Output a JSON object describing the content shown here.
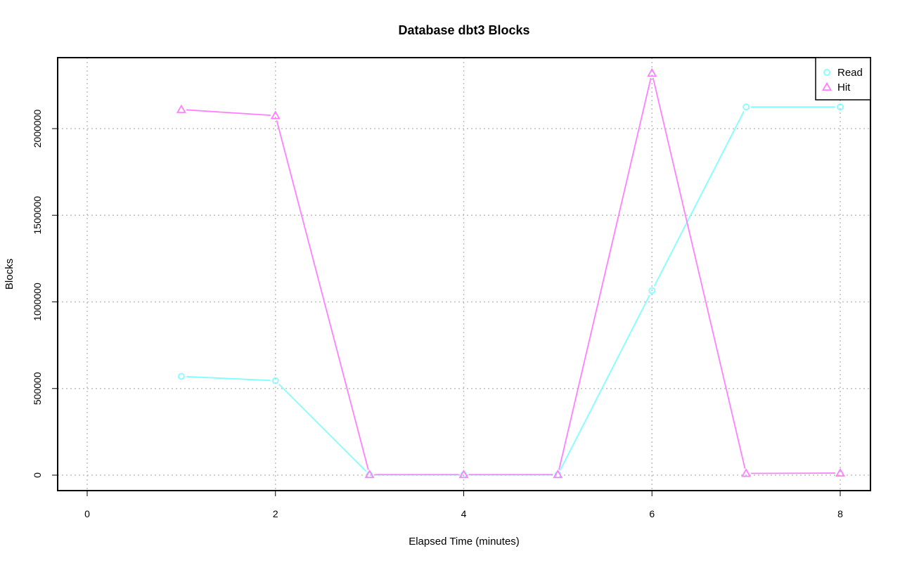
{
  "chart_data": {
    "type": "line",
    "title": "Database dbt3 Blocks",
    "xlabel": "Elapsed Time (minutes)",
    "ylabel": "Blocks",
    "xlim": [
      0,
      8
    ],
    "ylim": [
      0,
      2300000
    ],
    "x_ticks": [
      0,
      2,
      4,
      6,
      8
    ],
    "y_ticks": [
      0,
      500000,
      1000000,
      1500000,
      2000000
    ],
    "x_tick_labels": [
      "0",
      "2",
      "4",
      "6",
      "8"
    ],
    "y_tick_labels": [
      "0",
      "500000",
      "1000000",
      "1500000",
      "2000000"
    ],
    "grid": true,
    "legend_position": "top-right",
    "series": [
      {
        "name": "Read",
        "marker": "circle",
        "color": "#80ffff",
        "x": [
          1,
          2,
          3,
          4,
          5,
          6,
          7,
          8
        ],
        "values": [
          570000,
          545000,
          2000,
          2000,
          2000,
          1065000,
          2125000,
          2125000
        ]
      },
      {
        "name": "Hit",
        "marker": "triangle",
        "color": "#ff80ff",
        "x": [
          1,
          2,
          3,
          4,
          5,
          6,
          7,
          8
        ],
        "values": [
          2110000,
          2075000,
          3000,
          3000,
          3000,
          2320000,
          10000,
          12000
        ]
      }
    ]
  }
}
